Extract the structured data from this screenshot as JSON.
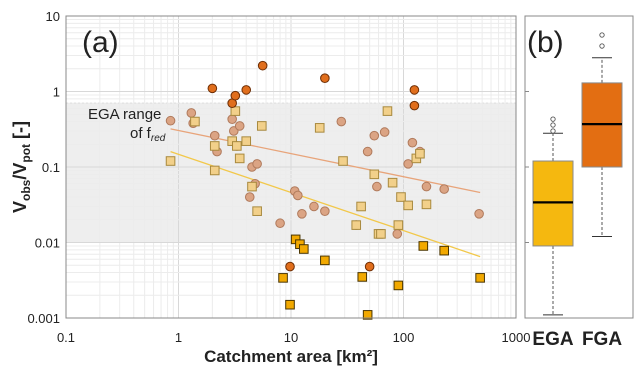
{
  "chart_data": [
    {
      "type": "scatter",
      "panel_label": "(a)",
      "xlabel": "Catchment area [km²]",
      "ylabel": "Vobs/Vpot [-]",
      "ylabel_parts": {
        "v1": "V",
        "sub1": "obs",
        "slash": "/V",
        "sub2": "pot",
        "unit": " [-]"
      },
      "xscale": "log",
      "yscale": "log",
      "xlim": [
        0.1,
        1000
      ],
      "ylim": [
        0.001,
        10
      ],
      "x_ticks": [
        {
          "value": 0.1,
          "label": "0.1"
        },
        {
          "value": 1,
          "label": "1"
        },
        {
          "value": 10,
          "label": "10"
        },
        {
          "value": 100,
          "label": "100"
        },
        {
          "value": 1000,
          "label": "1000"
        }
      ],
      "y_ticks": [
        {
          "value": 0.001,
          "label": "0.001"
        },
        {
          "value": 0.01,
          "label": "0.01"
        },
        {
          "value": 0.1,
          "label": "0.1"
        },
        {
          "value": 1,
          "label": "1"
        },
        {
          "value": 10,
          "label": "10"
        }
      ],
      "grid": true,
      "ega_range": {
        "ymin": 0.01,
        "ymax": 0.7,
        "label_line1": "EGA range",
        "label_line2_main": "of f",
        "label_line2_sub": "red"
      },
      "series": [
        {
          "marker": "circle",
          "fill": "#dba484",
          "stroke": "#b07a5c",
          "points": [
            [
              0.85,
              0.41
            ],
            [
              1.3,
              0.52
            ],
            [
              1.35,
              0.38
            ],
            [
              2.1,
              0.26
            ],
            [
              2.2,
              0.16
            ],
            [
              3.0,
              0.43
            ],
            [
              3.1,
              0.3
            ],
            [
              3.3,
              0.19
            ],
            [
              3.5,
              0.35
            ],
            [
              4.3,
              0.04
            ],
            [
              4.5,
              0.1
            ],
            [
              4.8,
              0.06
            ],
            [
              5.0,
              0.11
            ],
            [
              8.0,
              0.018
            ],
            [
              10.8,
              0.048
            ],
            [
              11.5,
              0.042
            ],
            [
              12.5,
              0.024
            ],
            [
              16.0,
              0.03
            ],
            [
              20.0,
              0.026
            ],
            [
              28.0,
              0.4
            ],
            [
              38.0,
              0.017
            ],
            [
              48.0,
              0.16
            ],
            [
              55.0,
              0.26
            ],
            [
              58.0,
              0.055
            ],
            [
              68.0,
              0.29
            ],
            [
              88.0,
              0.013
            ],
            [
              110.0,
              0.11
            ],
            [
              120.0,
              0.21
            ],
            [
              140.0,
              0.16
            ],
            [
              160.0,
              0.055
            ],
            [
              230.0,
              0.051
            ],
            [
              470.0,
              0.024
            ]
          ]
        },
        {
          "marker": "square",
          "fill": "#f2d08a",
          "stroke": "#a8893e",
          "points": [
            [
              0.85,
              0.12
            ],
            [
              1.4,
              0.4
            ],
            [
              2.1,
              0.19
            ],
            [
              2.1,
              0.09
            ],
            [
              3.0,
              0.22
            ],
            [
              3.2,
              0.55
            ],
            [
              3.3,
              0.19
            ],
            [
              3.5,
              0.13
            ],
            [
              4.0,
              0.22
            ],
            [
              4.5,
              0.055
            ],
            [
              5.0,
              0.026
            ],
            [
              5.5,
              0.35
            ],
            [
              18.0,
              0.33
            ],
            [
              29.0,
              0.12
            ],
            [
              38.0,
              0.017
            ],
            [
              42.0,
              0.03
            ],
            [
              55.0,
              0.08
            ],
            [
              60.0,
              0.013
            ],
            [
              63.0,
              0.013
            ],
            [
              72.0,
              0.55
            ],
            [
              80.0,
              0.062
            ],
            [
              90.0,
              0.017
            ],
            [
              95.0,
              0.04
            ],
            [
              110.0,
              0.031
            ],
            [
              130.0,
              0.13
            ],
            [
              140.0,
              0.15
            ],
            [
              160.0,
              0.032
            ]
          ]
        },
        {
          "marker": "circle",
          "fill": "#e06e1c",
          "stroke": "#6e2e05",
          "points": [
            [
              2.0,
              1.1
            ],
            [
              3.0,
              0.7
            ],
            [
              3.2,
              0.88
            ],
            [
              4.0,
              1.05
            ],
            [
              5.6,
              2.2
            ],
            [
              9.8,
              0.0048
            ],
            [
              20.0,
              1.5
            ],
            [
              50.0,
              0.0048
            ],
            [
              125.0,
              1.05
            ],
            [
              125.0,
              0.65
            ]
          ]
        },
        {
          "marker": "square",
          "fill": "#f2a900",
          "stroke": "#4a3500",
          "points": [
            [
              8.5,
              0.0034
            ],
            [
              9.8,
              0.0015
            ],
            [
              11.0,
              0.011
            ],
            [
              12.0,
              0.0095
            ],
            [
              13.0,
              0.0082
            ],
            [
              20.0,
              0.0058
            ],
            [
              43.0,
              0.0035
            ],
            [
              48.0,
              0.0011
            ],
            [
              90.0,
              0.0027
            ],
            [
              150.0,
              0.009
            ],
            [
              230.0,
              0.0078
            ],
            [
              480.0,
              0.0034
            ]
          ]
        }
      ],
      "trendlines": [
        {
          "color": "#e8a47a",
          "from": [
            0.85,
            0.32
          ],
          "to": [
            480.0,
            0.046
          ]
        },
        {
          "color": "#f2c84a",
          "from": [
            0.85,
            0.16
          ],
          "to": [
            480.0,
            0.0065
          ]
        }
      ]
    },
    {
      "type": "box",
      "panel_label": "(b)",
      "yscale": "log",
      "ylim": [
        0.001,
        10
      ],
      "categories": [
        "EGA",
        "FGA"
      ],
      "boxes": [
        {
          "name": "EGA",
          "fill": "#f5b80f",
          "whisker_low": 0.0011,
          "q1": 0.009,
          "median": 0.034,
          "q3": 0.12,
          "whisker_high": 0.28,
          "outliers": [
            0.3,
            0.36,
            0.43
          ]
        },
        {
          "name": "FGA",
          "fill": "#e36e12",
          "whisker_low": 0.012,
          "q1": 0.1,
          "median": 0.37,
          "q3": 1.3,
          "whisker_high": 2.8,
          "outliers": [
            4.0,
            5.6
          ]
        }
      ]
    }
  ]
}
